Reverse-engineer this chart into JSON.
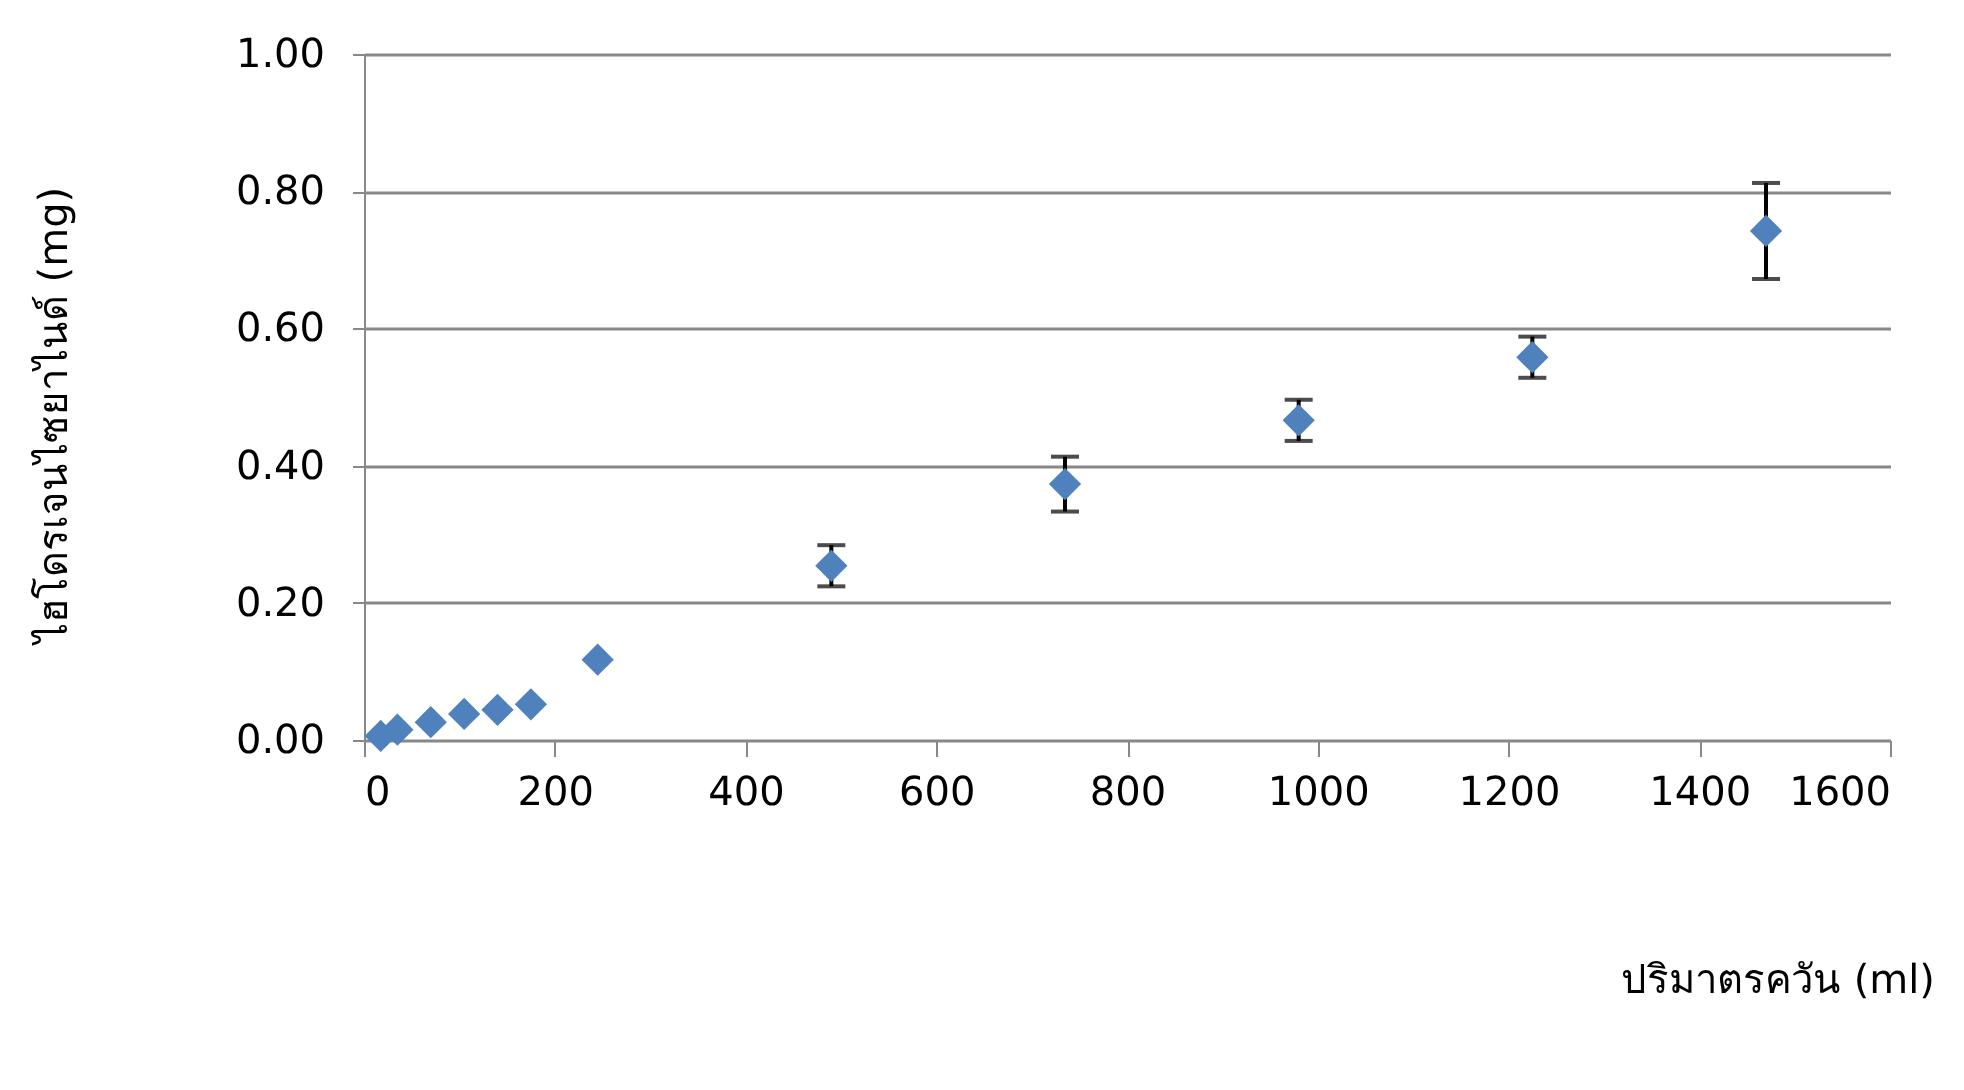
{
  "chart_data": {
    "type": "scatter",
    "xlabel": "ปริมาตรควัน (ml)",
    "ylabel": "ไฮโดรเจนไซยาไนด์ (mg)",
    "x": [
      17.5,
      35,
      70,
      105,
      140,
      175,
      245,
      490,
      735,
      980,
      1225,
      1470
    ],
    "series": [
      {
        "color": "#4f81bd",
        "values": [
          0.006,
          0.015,
          0.026,
          0.038,
          0.044,
          0.052,
          0.117,
          0.254,
          0.373,
          0.466,
          0.558,
          0.742
        ],
        "errors": [
          null,
          null,
          null,
          null,
          null,
          null,
          null,
          0.03,
          0.04,
          0.03,
          0.03,
          0.07
        ]
      }
    ],
    "xlim": [
      0,
      1600
    ],
    "xticks": [
      0,
      200,
      400,
      600,
      800,
      1000,
      1200,
      1400,
      1600
    ],
    "ylim": [
      0,
      1
    ],
    "yticks": [
      {
        "value": 0,
        "label": "0.00"
      },
      {
        "value": 0.2,
        "label": "0.20"
      },
      {
        "value": 0.4,
        "label": "0.40"
      },
      {
        "value": 0.6,
        "label": "0.60"
      },
      {
        "value": 0.8,
        "label": "0.80"
      },
      {
        "value": 1,
        "label": "1.00"
      }
    ],
    "grid": "y",
    "marker": "diamond"
  }
}
